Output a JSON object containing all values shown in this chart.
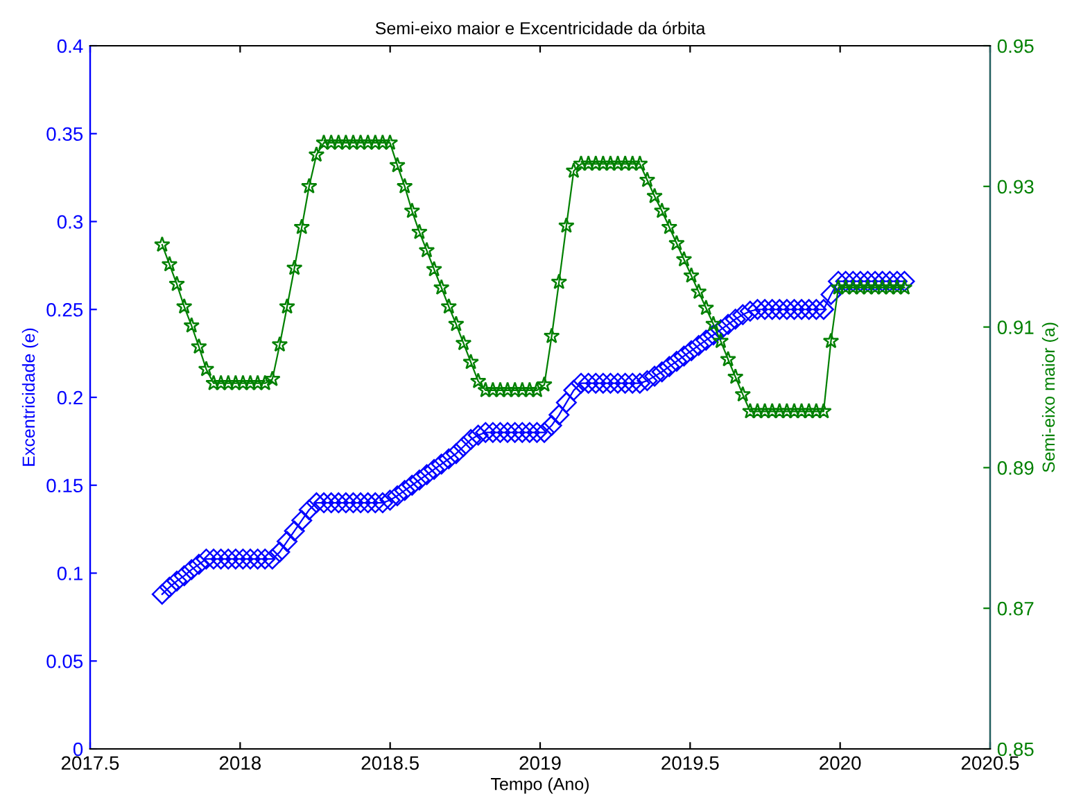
{
  "chart_data": {
    "type": "line",
    "title": "Semi-eixo maior e Excentricidade da órbita",
    "xlabel": "Tempo (Ano)",
    "ylabel": "Excentricidade (e)",
    "y2label": "Semi-eixo maior (a)",
    "x": [
      2017.74,
      2017.7645,
      2017.789,
      2017.8135,
      2017.838,
      2017.8625,
      2017.887,
      2017.9115,
      2017.936,
      2017.9605,
      2017.985,
      2018.0095,
      2018.034,
      2018.0585,
      2018.083,
      2018.1075,
      2018.132,
      2018.1565,
      2018.181,
      2018.2055,
      2018.23,
      2018.2545,
      2018.279,
      2018.3035,
      2018.328,
      2018.3525,
      2018.377,
      2018.4015,
      2018.426,
      2018.4505,
      2018.475,
      2018.4995,
      2018.524,
      2018.5485,
      2018.573,
      2018.5975,
      2018.622,
      2018.6465,
      2018.671,
      2018.6955,
      2018.72,
      2018.7445,
      2018.769,
      2018.7935,
      2018.818,
      2018.8425,
      2018.867,
      2018.8915,
      2018.916,
      2018.9405,
      2018.965,
      2018.9895,
      2019.014,
      2019.0385,
      2019.063,
      2019.0875,
      2019.112,
      2019.1365,
      2019.161,
      2019.1855,
      2019.21,
      2019.2345,
      2019.259,
      2019.2835,
      2019.308,
      2019.3325,
      2019.357,
      2019.3815,
      2019.406,
      2019.4305,
      2019.455,
      2019.4795,
      2019.504,
      2019.5285,
      2019.553,
      2019.5775,
      2019.602,
      2019.6265,
      2019.651,
      2019.6755,
      2019.7,
      2019.7245,
      2019.749,
      2019.7735,
      2019.798,
      2019.8225,
      2019.847,
      2019.8715,
      2019.896,
      2019.9205,
      2019.945,
      2019.9695,
      2019.994,
      2020.0185,
      2020.043,
      2020.0675,
      2020.092,
      2020.1165,
      2020.141,
      2020.1655,
      2020.19,
      2020.2145
    ],
    "series": [
      {
        "color": "#0000ff",
        "marker": "diamond",
        "values": [
          0.088,
          0.092,
          0.0955,
          0.0985,
          0.102,
          0.105,
          0.108,
          0.108,
          0.108,
          0.108,
          0.108,
          0.108,
          0.108,
          0.108,
          0.108,
          0.108,
          0.112,
          0.118,
          0.124,
          0.13,
          0.136,
          0.14,
          0.14,
          0.14,
          0.14,
          0.14,
          0.14,
          0.14,
          0.14,
          0.14,
          0.14,
          0.1415,
          0.144,
          0.147,
          0.15,
          0.153,
          0.156,
          0.159,
          0.162,
          0.165,
          0.168,
          0.172,
          0.176,
          0.1785,
          0.18,
          0.18,
          0.18,
          0.18,
          0.18,
          0.18,
          0.18,
          0.18,
          0.18,
          0.184,
          0.19,
          0.197,
          0.204,
          0.208,
          0.208,
          0.208,
          0.208,
          0.208,
          0.208,
          0.208,
          0.208,
          0.208,
          0.2095,
          0.212,
          0.2145,
          0.2175,
          0.2205,
          0.2235,
          0.2265,
          0.2295,
          0.2325,
          0.2355,
          0.2385,
          0.2415,
          0.2445,
          0.247,
          0.249,
          0.25,
          0.25,
          0.25,
          0.25,
          0.25,
          0.25,
          0.25,
          0.25,
          0.25,
          0.25,
          0.2585,
          0.266,
          0.266,
          0.266,
          0.266,
          0.266,
          0.266,
          0.266,
          0.266,
          0.266,
          0.266
        ]
      },
      {
        "color": "#008000",
        "marker": "star",
        "axis": "y2",
        "values": [
          0.9217,
          0.9189,
          0.9161,
          0.9129,
          0.9102,
          0.9072,
          0.904,
          0.902,
          0.902,
          0.902,
          0.902,
          0.902,
          0.902,
          0.902,
          0.902,
          0.9026,
          0.9075,
          0.9129,
          0.9184,
          0.9242,
          0.93,
          0.9345,
          0.9362,
          0.9362,
          0.9362,
          0.9362,
          0.9362,
          0.9362,
          0.9362,
          0.9362,
          0.9362,
          0.9362,
          0.933,
          0.93,
          0.9265,
          0.9235,
          0.9209,
          0.9182,
          0.9156,
          0.9129,
          0.9104,
          0.9077,
          0.905,
          0.9023,
          0.901,
          0.901,
          0.901,
          0.901,
          0.901,
          0.901,
          0.901,
          0.901,
          0.9018,
          0.9087,
          0.9164,
          0.9244,
          0.9322,
          0.9332,
          0.9332,
          0.9332,
          0.9332,
          0.9332,
          0.9332,
          0.9332,
          0.9332,
          0.9332,
          0.9309,
          0.9286,
          0.9265,
          0.9242,
          0.9219,
          0.9196,
          0.9173,
          0.915,
          0.9127,
          0.9104,
          0.908,
          0.9054,
          0.9029,
          0.9004,
          0.898,
          0.898,
          0.898,
          0.898,
          0.898,
          0.898,
          0.898,
          0.898,
          0.898,
          0.898,
          0.898,
          0.908,
          0.9156,
          0.9156,
          0.9156,
          0.9156,
          0.9156,
          0.9156,
          0.9156,
          0.9156,
          0.9156,
          0.9156
        ]
      }
    ],
    "xlim": [
      2017.5,
      2020.5
    ],
    "xticks": [
      2017.5,
      2018,
      2018.5,
      2019,
      2019.5,
      2020,
      2020.5
    ],
    "ylim": [
      0,
      0.4
    ],
    "yticks": [
      0,
      0.05,
      0.1,
      0.15,
      0.2,
      0.25,
      0.3,
      0.35,
      0.4
    ],
    "y2lim": [
      0.85,
      0.95
    ],
    "y2ticks": [
      0.85,
      0.87,
      0.89,
      0.91,
      0.93,
      0.95
    ],
    "grid": false,
    "line_style": "solid"
  }
}
